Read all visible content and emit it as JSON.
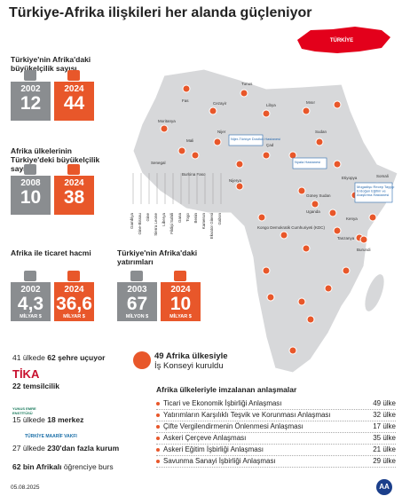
{
  "header": {
    "title": "Türkiye-Afrika ilişkileri her alanda güçleniyor"
  },
  "map": {
    "turkey_label": "TÜRKİYE",
    "labels": [
      "Fas",
      "Cezayir",
      "Tunus",
      "Libya",
      "Mısır",
      "Moritanya",
      "Mali",
      "Nijer",
      "Çad",
      "Sudan",
      "Senegal",
      "Burkina Faso",
      "Nijerya",
      "Güney Sudan",
      "Etiyopya",
      "Uganda",
      "Kenya",
      "Somali",
      "Kongo Demokratik Cumhuriyeti (KDC)",
      "Burundi",
      "Tanzanya"
    ],
    "vertical_labels": [
      "Gambiya",
      "Gine-Bissau",
      "Gine",
      "Sierra Leone",
      "Liberya",
      "Fildişi Sahili",
      "Gana",
      "Togo",
      "Benin",
      "Kamerun",
      "Ekvator Ginesi",
      "Gabon"
    ],
    "hospitals": [
      "Nijer-Türkiye Dostluk Hastanesi",
      "Nyala Hastanesi",
      "Mogadişu Recep Tayyip Erdoğan Eğitim ve Araştırma Hastanesi"
    ]
  },
  "stats": [
    {
      "label": "Türkiye'nin Afrika'daki büyükelçilik sayısı",
      "before": {
        "year": "2002",
        "value": "12"
      },
      "after": {
        "year": "2024",
        "value": "44"
      }
    },
    {
      "label": "Afrika ülkelerinin Türkiye'deki büyükelçilik sayısı",
      "before": {
        "year": "2008",
        "value": "10"
      },
      "after": {
        "year": "2024",
        "value": "38"
      }
    },
    {
      "label": "Afrika ile ticaret hacmi",
      "before": {
        "year": "2002",
        "value": "4,3",
        "unit": "MİLYAR $"
      },
      "after": {
        "year": "2024",
        "value": "36,6",
        "unit": "MİLYAR $"
      }
    },
    {
      "label": "Türkiye'nin Afrika'daki yatırımları",
      "before": {
        "year": "2003",
        "value": "67",
        "unit": "MİLYON $"
      },
      "after": {
        "year": "2024",
        "value": "10",
        "unit": "MİLYAR $"
      }
    }
  ],
  "facts": {
    "flights": {
      "lead": "41 ülkede",
      "bold": "62 şehre uçuyor"
    },
    "tika": {
      "logo": "TİKA",
      "text": "22 temsilcilik"
    },
    "yee": {
      "logo": "YUNUS EMRE ENSTİTÜSÜ",
      "lead": "15 ülkede",
      "bold": "18 merkez"
    },
    "maarif": {
      "logo": "TÜRKİYE MAARİF VAKFI",
      "lead": "27 ülkede",
      "bold": "230'dan fazla kurum"
    },
    "burs": {
      "bold": "62 bin Afrikalı",
      "text": "öğrenciye burs"
    },
    "council": {
      "bold": "49 Afrika ülkesiyle",
      "text": "İş Konseyi kuruldu"
    }
  },
  "agreements": {
    "title": "Afrika ülkeleriyle imzalanan anlaşmalar",
    "rows": [
      {
        "name": "Ticari ve Ekonomik İşbirliği Anlaşması",
        "count": "49 ülke"
      },
      {
        "name": "Yatırımların Karşılıklı Teşvik ve Korunması Anlaşması",
        "count": "32 ülke"
      },
      {
        "name": "Çifte Vergilendirmenin Önlenmesi Anlaşması",
        "count": "17 ülke"
      },
      {
        "name": "Askeri Çerçeve Anlaşması",
        "count": "35 ülke"
      },
      {
        "name": "Askeri Eğitim İşbirliği Anlaşması",
        "count": "21 ülke"
      },
      {
        "name": "Savunma Sanayi İşbirliği Anlaşması",
        "count": "29 ülke"
      }
    ]
  },
  "footer": {
    "date": "05.08.2025",
    "logo": "AA"
  }
}
